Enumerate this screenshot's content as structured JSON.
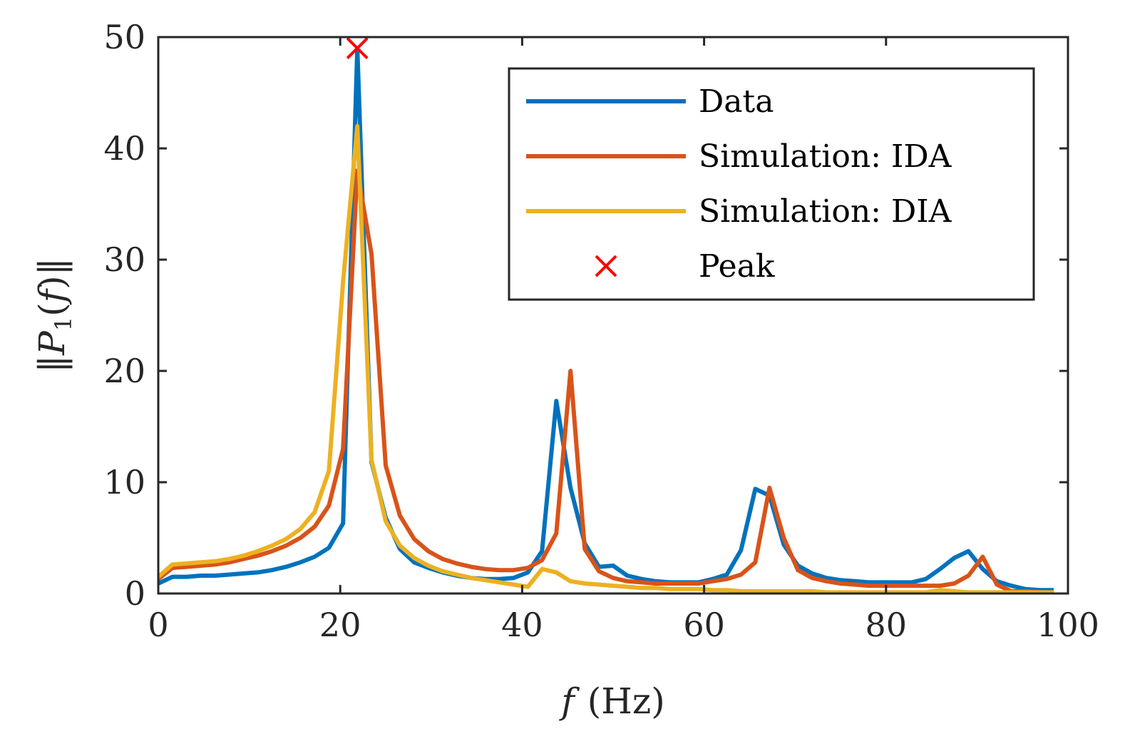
{
  "chart_data": {
    "type": "line",
    "xlabel": "f (Hz)",
    "ylabel": "||P1(f)||",
    "xlim": [
      0,
      100
    ],
    "ylim": [
      0,
      50
    ],
    "xticks": [
      "0",
      "20",
      "40",
      "60",
      "80",
      "100"
    ],
    "yticks": [
      "0",
      "10",
      "20",
      "30",
      "40",
      "50"
    ],
    "grid": false,
    "legend_position": "top-right",
    "colors": {
      "Data": "#0072BD",
      "Simulation: IDA": "#D95319",
      "Simulation: DIA": "#EDB120",
      "Peak": "#FF0000",
      "axes": "#262626"
    },
    "series": [
      {
        "name": "Data",
        "x": [
          0,
          1.56,
          3.13,
          4.69,
          6.25,
          7.81,
          9.38,
          10.94,
          12.5,
          14.06,
          15.63,
          17.19,
          18.75,
          20.31,
          21.88,
          23.44,
          25,
          26.56,
          28.13,
          29.69,
          31.25,
          32.81,
          34.38,
          35.94,
          37.5,
          39.06,
          40.63,
          42.19,
          43.75,
          45.31,
          46.88,
          48.44,
          50,
          51.56,
          53.13,
          54.69,
          56.25,
          57.81,
          59.38,
          60.94,
          62.5,
          64.06,
          65.63,
          67.19,
          68.75,
          70.31,
          71.88,
          73.44,
          75,
          76.56,
          78.13,
          79.69,
          81.25,
          82.81,
          84.38,
          85.94,
          87.5,
          89.06,
          90.63,
          92.19,
          93.75,
          95.31,
          96.88,
          98.44
        ],
        "y": [
          0.9,
          1.5,
          1.5,
          1.6,
          1.6,
          1.7,
          1.8,
          1.9,
          2.1,
          2.4,
          2.8,
          3.3,
          4.1,
          6.3,
          49.0,
          11.8,
          6.8,
          4.0,
          2.8,
          2.3,
          1.9,
          1.6,
          1.4,
          1.3,
          1.3,
          1.4,
          1.9,
          3.8,
          17.3,
          9.5,
          4.5,
          2.4,
          2.5,
          1.6,
          1.3,
          1.1,
          1.0,
          1.0,
          1.0,
          1.3,
          1.7,
          3.9,
          9.4,
          8.8,
          4.4,
          2.5,
          1.8,
          1.4,
          1.2,
          1.1,
          1.0,
          1.0,
          1.0,
          1.0,
          1.3,
          2.2,
          3.2,
          3.8,
          2.2,
          1.1,
          0.7,
          0.4,
          0.3,
          0.3
        ]
      },
      {
        "name": "Simulation: IDA",
        "x": [
          0,
          1.56,
          3.13,
          4.69,
          6.25,
          7.81,
          9.38,
          10.94,
          12.5,
          14.06,
          15.63,
          17.19,
          18.75,
          20.31,
          21.88,
          23.44,
          25,
          26.56,
          28.13,
          29.69,
          31.25,
          32.81,
          34.38,
          35.94,
          37.5,
          39.06,
          40.63,
          42.19,
          43.75,
          45.31,
          46.88,
          48.44,
          50,
          51.56,
          53.13,
          54.69,
          56.25,
          57.81,
          59.38,
          60.94,
          62.5,
          64.06,
          65.63,
          67.19,
          68.75,
          70.31,
          71.88,
          73.44,
          75,
          76.56,
          78.13,
          79.69,
          81.25,
          82.81,
          84.38,
          85.94,
          87.5,
          89.06,
          90.63,
          92.19,
          93.75,
          95.31,
          96.88,
          98.44
        ],
        "y": [
          1.3,
          2.3,
          2.4,
          2.5,
          2.6,
          2.8,
          3.1,
          3.4,
          3.8,
          4.3,
          5.0,
          6.0,
          7.9,
          13.0,
          38.0,
          30.5,
          11.5,
          7.0,
          4.9,
          3.8,
          3.1,
          2.7,
          2.4,
          2.2,
          2.1,
          2.1,
          2.3,
          3.0,
          5.4,
          20.0,
          4.0,
          2.0,
          1.4,
          1.1,
          1.0,
          0.9,
          0.9,
          0.9,
          0.9,
          1.1,
          1.3,
          1.7,
          2.8,
          9.5,
          5.0,
          2.1,
          1.4,
          1.1,
          0.9,
          0.8,
          0.7,
          0.7,
          0.7,
          0.7,
          0.7,
          0.7,
          0.9,
          1.6,
          3.3,
          0.8,
          0.2,
          0.2,
          0.1,
          0.1
        ]
      },
      {
        "name": "Simulation: DIA",
        "x": [
          0,
          1.56,
          3.13,
          4.69,
          6.25,
          7.81,
          9.38,
          10.94,
          12.5,
          14.06,
          15.63,
          17.19,
          18.75,
          20.31,
          21.88,
          23.44,
          25,
          26.56,
          28.13,
          29.69,
          31.25,
          32.81,
          34.38,
          35.94,
          37.5,
          39.06,
          40.63,
          42.19,
          43.75,
          45.31,
          46.88,
          48.44,
          50,
          51.56,
          53.13,
          54.69,
          56.25,
          57.81,
          59.38,
          60.94,
          62.5,
          64.06,
          65.63,
          67.19,
          68.75,
          70.31,
          71.88,
          73.44,
          75,
          76.56,
          78.13,
          79.69,
          81.25,
          82.81,
          84.38,
          85.94,
          87.5,
          89.06,
          90.63,
          92.19,
          93.75,
          95.31,
          96.88,
          98.44
        ],
        "y": [
          1.5,
          2.6,
          2.7,
          2.8,
          2.9,
          3.1,
          3.4,
          3.8,
          4.3,
          4.9,
          5.8,
          7.3,
          11.0,
          28.0,
          42.0,
          12.0,
          6.5,
          4.3,
          3.2,
          2.5,
          2.0,
          1.7,
          1.4,
          1.2,
          1.0,
          0.8,
          0.6,
          2.2,
          1.9,
          1.1,
          0.9,
          0.8,
          0.7,
          0.6,
          0.5,
          0.5,
          0.4,
          0.4,
          0.4,
          0.3,
          0.3,
          0.2,
          0.2,
          0.2,
          0.2,
          0.2,
          0.2,
          0.1,
          0.1,
          0.1,
          0.1,
          0.1,
          0.1,
          0.1,
          0.1,
          0.3,
          0.2,
          0.1,
          0.1,
          0.1,
          0.1,
          0.1,
          0.1,
          0.1
        ]
      },
      {
        "name": "Peak",
        "marker": "x",
        "x": [
          21.88
        ],
        "y": [
          49.0
        ]
      }
    ]
  }
}
